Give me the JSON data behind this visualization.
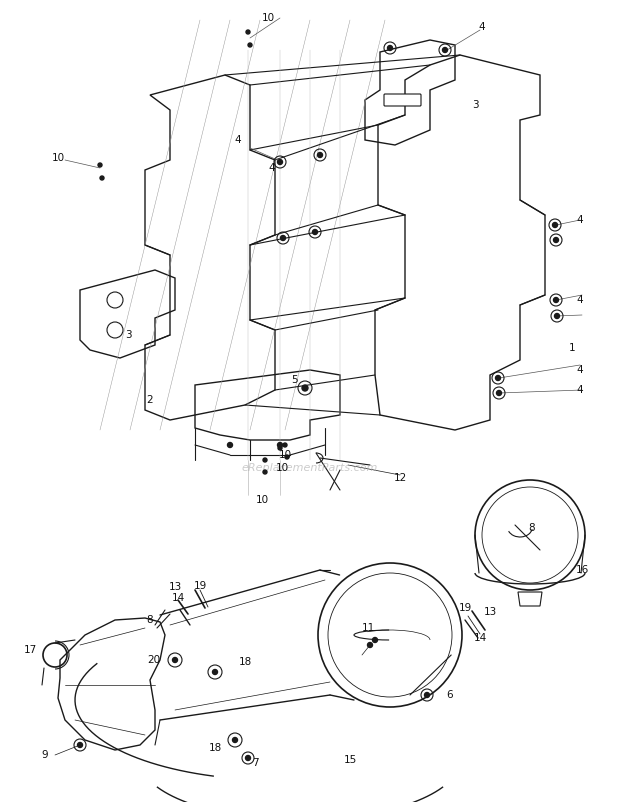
{
  "bg_color": "#ffffff",
  "fig_width": 6.2,
  "fig_height": 8.02,
  "dpi": 100,
  "watermark_text": "eReplacementParts.com",
  "line_color": "#1a1a1a",
  "lw": 0.8,
  "label_fontsize": 7.5
}
